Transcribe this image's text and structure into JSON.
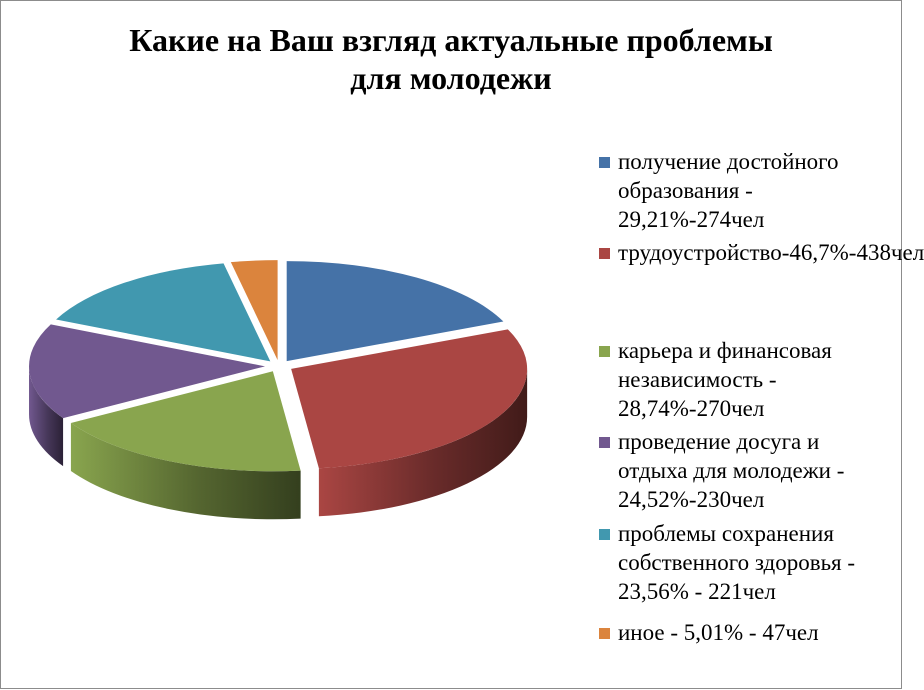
{
  "chart_data": {
    "type": "pie",
    "title": "Какие на Ваш взгляд актуальные проблемы для молодежи",
    "title_lines": [
      "Какие на Ваш взгляд актуальные проблемы",
      "для молодежи"
    ],
    "legend_position": "right",
    "slices": [
      {
        "label": "получение достойного образования - 29,21%-274чел",
        "percent": 29.21,
        "count": 274,
        "color": "#4572a7"
      },
      {
        "label": "трудоустройство-46,7%-438чел",
        "percent": 46.7,
        "count": 438,
        "color": "#aa4643"
      },
      {
        "label": "карьера и финансовая независимость - 28,74%-270чел",
        "percent": 28.74,
        "count": 270,
        "color": "#89a54e"
      },
      {
        "label": "проведение досуга и отдыха для молодежи - 24,52%-230чел",
        "percent": 24.52,
        "count": 230,
        "color": "#71588f"
      },
      {
        "label": "проблемы сохранения собственного здоровья - 23,56% - 221чел",
        "percent": 23.56,
        "count": 221,
        "color": "#4198af"
      },
      {
        "label": "иное - 5,01% - 47чел",
        "percent": 5.01,
        "count": 47,
        "color": "#db843d"
      }
    ]
  }
}
